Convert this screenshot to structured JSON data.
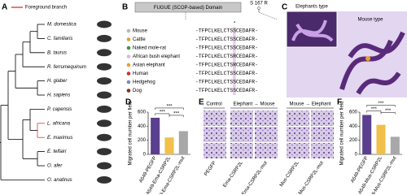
{
  "panel_a": {
    "label": "A",
    "legend": "Foreground branch",
    "species": [
      "M. domestica",
      "C. familiaris",
      "B. taurus",
      "R. ferrumequinum",
      "H. glaber",
      "H. sapiens",
      "P. capensis",
      "L. africana",
      "E. maximus",
      "E. telfairi",
      "O. afer",
      "O. anatinus"
    ]
  },
  "panel_b": {
    "label": "B",
    "domain": "FUGUE (SCOP-based) Domain",
    "mutation": "S 167 R",
    "star": "*",
    "legend": [
      {
        "name": "Mouse",
        "color": "#b9b9b9"
      },
      {
        "name": "Cattle",
        "color": "#e0a030"
      },
      {
        "name": "Naked mole-rat",
        "color": "#3a9a3a"
      },
      {
        "name": "African bush elephant",
        "color": "#d8b8d8"
      },
      {
        "name": "Asian elephant",
        "color": "#e8a030"
      },
      {
        "name": "Human",
        "color": "#d03030"
      },
      {
        "name": "Hedgehog",
        "color": "#7a8ac0"
      },
      {
        "name": "Dog",
        "color": "#8a2a1a"
      }
    ],
    "sequences": [
      "-TFPCLKELCTSSCEDAFR-",
      "-TFPCLKELCTSSCEDAFR-",
      "-TFPCLKELCTSSCEDAFR-",
      "-TFPCLKELCTSRCEDAFR-",
      "-TFPCLKELCTSRCEDAFR-",
      "-TFPCLKELCTSSCEDAFR-",
      "-TFPCLKELCTSSCEDAFR-",
      "-TFPCLKELCTSSCEDAFR-"
    ]
  },
  "panel_c": {
    "label": "C",
    "elephant": "Elephants type",
    "mouse": "Mouse type"
  },
  "panel_e": {
    "label": "E",
    "groups": [
      "Control",
      "Elephant → Mouse",
      "Mouse → Elephant"
    ],
    "samples": [
      "PEGFP",
      "Ema-CSRP2L",
      "Ema-CSRP2L-mut",
      "Mus-CSRP2L",
      "Mus-CSRP2L-mut"
    ]
  },
  "chart_data": [
    {
      "type": "bar",
      "label": "D",
      "y_label": "Migrated cell number per field",
      "categories": [
        "A549-PEGFP",
        "A549-Ema-CSRP2L",
        "A549-Ema-CSRP2L-mut"
      ],
      "values": [
        520,
        240,
        330
      ],
      "colors": [
        "#5b3f8f",
        "#f0c04a",
        "#a8a8a8"
      ],
      "ylim": [
        0,
        600
      ],
      "yticks": [
        0,
        200,
        400,
        600
      ],
      "significance": [
        "***",
        "***",
        "***"
      ]
    },
    {
      "type": "bar",
      "label": "F",
      "y_label": "Migrated cell number per field",
      "categories": [
        "A549-PEGFP",
        "A549-Mus-CSRP2L",
        "A549-Mus-CSRP2L-mut"
      ],
      "values": [
        560,
        420,
        250
      ],
      "colors": [
        "#5b3f8f",
        "#f0c04a",
        "#a8a8a8"
      ],
      "ylim": [
        0,
        600
      ],
      "yticks": [
        0,
        200,
        400,
        600
      ],
      "significance": [
        "***",
        "***",
        "***"
      ]
    }
  ]
}
